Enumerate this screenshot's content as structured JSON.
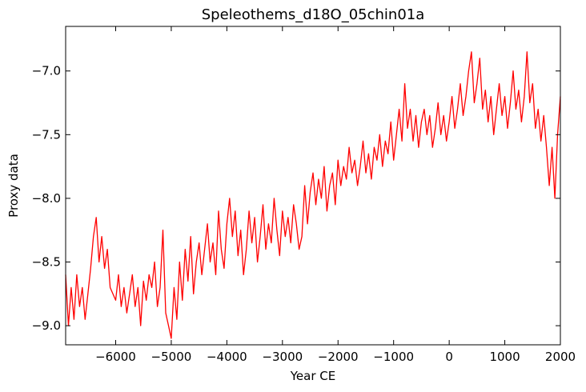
{
  "chart_data": {
    "type": "line",
    "title": "Speleothems_d18O_05chin01a",
    "xlabel": "Year CE",
    "ylabel": "Proxy data",
    "xlim": [
      -6900,
      2000
    ],
    "ylim": [
      -9.15,
      -6.65
    ],
    "xticks": [
      -6000,
      -5000,
      -4000,
      -3000,
      -2000,
      -1000,
      0,
      1000,
      2000
    ],
    "xtick_labels": [
      "−6000",
      "−5000",
      "−4000",
      "−3000",
      "−2000",
      "−1000",
      "0",
      "1000",
      "2000"
    ],
    "yticks": [
      -9.0,
      -8.5,
      -8.0,
      -7.5,
      -7.0
    ],
    "ytick_labels": [
      "−9.0",
      "−8.5",
      "−8.0",
      "−7.5",
      "−7.0"
    ],
    "grid": false,
    "line_color": "#ff0000",
    "series": [
      {
        "x": [
          -6900,
          -6850,
          -6800,
          -6750,
          -6700,
          -6650,
          -6600,
          -6550,
          -6500,
          -6450,
          -6400,
          -6350,
          -6300,
          -6250,
          -6200,
          -6150,
          -6100,
          -6050,
          -6000,
          -5950,
          -5900,
          -5850,
          -5800,
          -5750,
          -5700,
          -5650,
          -5600,
          -5550,
          -5500,
          -5450,
          -5400,
          -5350,
          -5300,
          -5250,
          -5200,
          -5150,
          -5100,
          -5050,
          -5000,
          -4950,
          -4900,
          -4850,
          -4800,
          -4750,
          -4700,
          -4650,
          -4600,
          -4550,
          -4500,
          -4450,
          -4400,
          -4350,
          -4300,
          -4250,
          -4200,
          -4150,
          -4100,
          -4050,
          -4000,
          -3950,
          -3900,
          -3850,
          -3800,
          -3750,
          -3700,
          -3650,
          -3600,
          -3550,
          -3500,
          -3450,
          -3400,
          -3350,
          -3300,
          -3250,
          -3200,
          -3150,
          -3100,
          -3050,
          -3000,
          -2950,
          -2900,
          -2850,
          -2800,
          -2750,
          -2700,
          -2650,
          -2600,
          -2550,
          -2500,
          -2450,
          -2400,
          -2350,
          -2300,
          -2250,
          -2200,
          -2150,
          -2100,
          -2050,
          -2000,
          -1950,
          -1900,
          -1850,
          -1800,
          -1750,
          -1700,
          -1650,
          -1600,
          -1550,
          -1500,
          -1450,
          -1400,
          -1350,
          -1300,
          -1250,
          -1200,
          -1150,
          -1100,
          -1050,
          -1000,
          -950,
          -900,
          -850,
          -800,
          -750,
          -700,
          -650,
          -600,
          -550,
          -500,
          -450,
          -400,
          -350,
          -300,
          -250,
          -200,
          -150,
          -100,
          -50,
          0,
          50,
          100,
          150,
          200,
          250,
          300,
          350,
          400,
          450,
          500,
          550,
          600,
          650,
          700,
          750,
          800,
          850,
          900,
          950,
          1000,
          1050,
          1100,
          1150,
          1200,
          1250,
          1300,
          1350,
          1400,
          1450,
          1500,
          1550,
          1600,
          1650,
          1700,
          1750,
          1800,
          1850,
          1900,
          1950,
          2000
        ],
        "values": [
          -8.6,
          -9.0,
          -8.7,
          -8.95,
          -8.6,
          -8.85,
          -8.7,
          -8.95,
          -8.75,
          -8.55,
          -8.3,
          -8.15,
          -8.5,
          -8.3,
          -8.55,
          -8.4,
          -8.7,
          -8.75,
          -8.8,
          -8.6,
          -8.85,
          -8.7,
          -8.9,
          -8.75,
          -8.6,
          -8.85,
          -8.7,
          -9.0,
          -8.65,
          -8.8,
          -8.6,
          -8.7,
          -8.5,
          -8.85,
          -8.7,
          -8.25,
          -8.9,
          -9.0,
          -9.1,
          -8.7,
          -8.95,
          -8.5,
          -8.8,
          -8.4,
          -8.65,
          -8.3,
          -8.75,
          -8.5,
          -8.35,
          -8.6,
          -8.4,
          -8.2,
          -8.5,
          -8.35,
          -8.6,
          -8.1,
          -8.4,
          -8.55,
          -8.2,
          -8.0,
          -8.3,
          -8.1,
          -8.45,
          -8.25,
          -8.6,
          -8.4,
          -8.1,
          -8.35,
          -8.15,
          -8.5,
          -8.3,
          -8.05,
          -8.4,
          -8.2,
          -8.35,
          -8.0,
          -8.25,
          -8.45,
          -8.1,
          -8.3,
          -8.15,
          -8.35,
          -8.05,
          -8.2,
          -8.4,
          -8.3,
          -7.9,
          -8.2,
          -7.95,
          -7.8,
          -8.05,
          -7.85,
          -8.0,
          -7.75,
          -8.1,
          -7.9,
          -7.8,
          -8.05,
          -7.7,
          -7.9,
          -7.75,
          -7.85,
          -7.6,
          -7.8,
          -7.7,
          -7.9,
          -7.75,
          -7.55,
          -7.8,
          -7.65,
          -7.85,
          -7.6,
          -7.7,
          -7.5,
          -7.75,
          -7.55,
          -7.65,
          -7.4,
          -7.7,
          -7.5,
          -7.3,
          -7.55,
          -7.1,
          -7.45,
          -7.3,
          -7.55,
          -7.35,
          -7.6,
          -7.4,
          -7.3,
          -7.5,
          -7.35,
          -7.6,
          -7.45,
          -7.25,
          -7.5,
          -7.35,
          -7.55,
          -7.4,
          -7.2,
          -7.45,
          -7.3,
          -7.1,
          -7.35,
          -7.2,
          -7.0,
          -6.85,
          -7.25,
          -7.1,
          -6.9,
          -7.3,
          -7.15,
          -7.4,
          -7.2,
          -7.5,
          -7.3,
          -7.1,
          -7.35,
          -7.2,
          -7.45,
          -7.25,
          -7.0,
          -7.3,
          -7.15,
          -7.4,
          -7.2,
          -6.85,
          -7.25,
          -7.1,
          -7.45,
          -7.3,
          -7.55,
          -7.35,
          -7.6,
          -7.9,
          -7.6,
          -8.0,
          -7.5,
          -7.2
        ]
      }
    ]
  }
}
